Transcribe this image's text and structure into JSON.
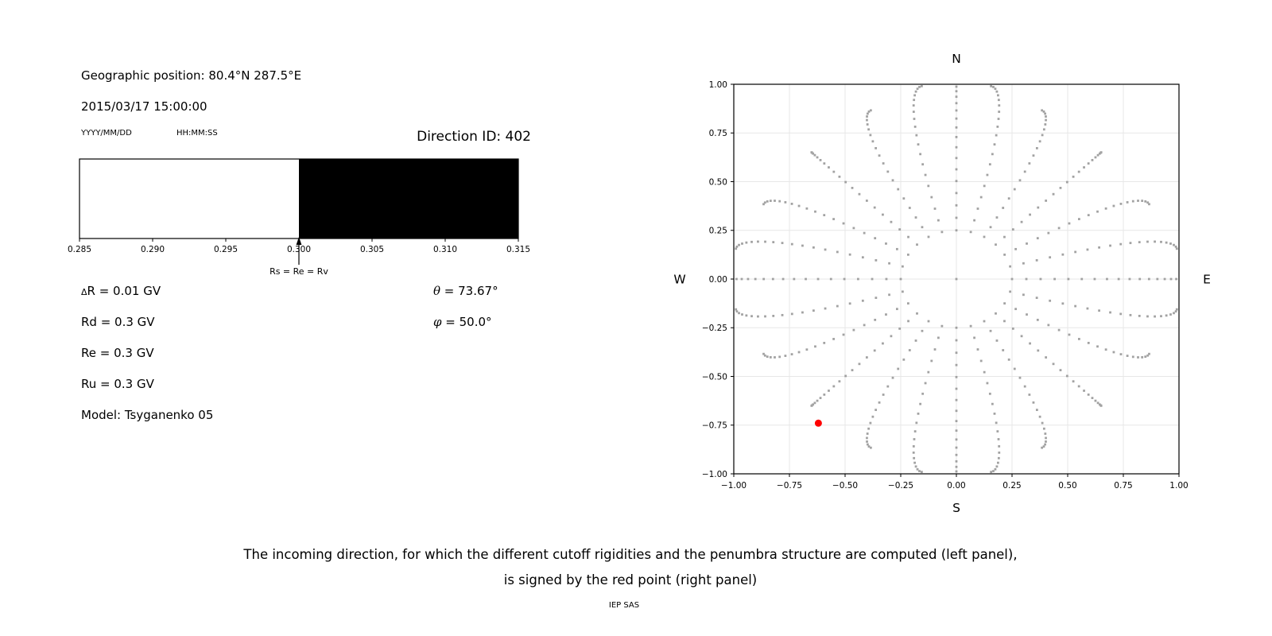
{
  "header": {
    "geographic_position": "Geographic position: 80.4°N 287.5°E",
    "datetime": "2015/03/17 15:00:00",
    "date_format_label": "YYYY/MM/DD",
    "time_format_label": "HH:MM:SS",
    "direction_id": "Direction ID: 402"
  },
  "info": {
    "delta_symbol": "Δ",
    "delta_rest": "R = 0.01 GV",
    "rd": "Rd = 0.3 GV",
    "re": "Re = 0.3 GV",
    "ru": "Ru = 0.3 GV",
    "model": "Model: Tsyganenko 05",
    "theta_symbol": "θ",
    "theta_value": " = 73.67°",
    "phi_symbol": "φ",
    "phi_value": " = 50.0°"
  },
  "caption": {
    "line1": "The incoming direction, for which the different cutoff rigidities and the penumbra structure are computed (left panel),",
    "line2": "is signed by the red point (right panel)",
    "credit": "IEP SAS"
  },
  "chart_data": [
    {
      "type": "bar",
      "name": "penumbra-structure",
      "xlabel": "",
      "xlim": [
        0.285,
        0.315
      ],
      "ticks": [
        0.285,
        0.29,
        0.295,
        0.3,
        0.305,
        0.31,
        0.315
      ],
      "tick_decimals": 3,
      "segments": [
        {
          "from": 0.285,
          "to": 0.3,
          "state": "allowed",
          "color": "#ffffff"
        },
        {
          "from": 0.3,
          "to": 0.315,
          "state": "forbidden",
          "color": "#000000"
        }
      ],
      "annotation": {
        "text": "Rs = Re = Rv",
        "x": 0.3
      },
      "frame_color": "#000000"
    },
    {
      "type": "scatter",
      "name": "incoming-direction-map",
      "compass_labels": {
        "top": "N",
        "bottom": "S",
        "left": "W",
        "right": "E"
      },
      "xlim": [
        -1.0,
        1.0
      ],
      "ylim": [
        -1.0,
        1.0
      ],
      "ticks": [
        -1.0,
        -0.75,
        -0.5,
        -0.25,
        0.0,
        0.25,
        0.5,
        0.75,
        1.0
      ],
      "tick_decimals": 2,
      "grid": true,
      "grid_color": "#e7e7e7",
      "dot_color": "#999999",
      "dot_size_px": 2.8,
      "direction_grid": {
        "description": "24 azimuth spokes every 15 deg; each spoke has 20 direction samples from inner radius to rim; radius spacing follows sin(t*90deg) so points cluster at the rim; spokes bend toward the nearest cardinal axis (pincushion); single sample at the plot centre",
        "azimuth_count": 24,
        "azimuth_step_deg": 15,
        "points_per_spoke": 20,
        "r_inner": 0.25,
        "r_max_base": 1.03,
        "r_max_dip": 0.11,
        "curl_deg": 7,
        "center_dot": true,
        "clip": 1.002
      },
      "red_point": {
        "x": -0.62,
        "y": -0.74,
        "color": "#ff0000",
        "radius_px": 4.5
      },
      "legend": null
    }
  ]
}
